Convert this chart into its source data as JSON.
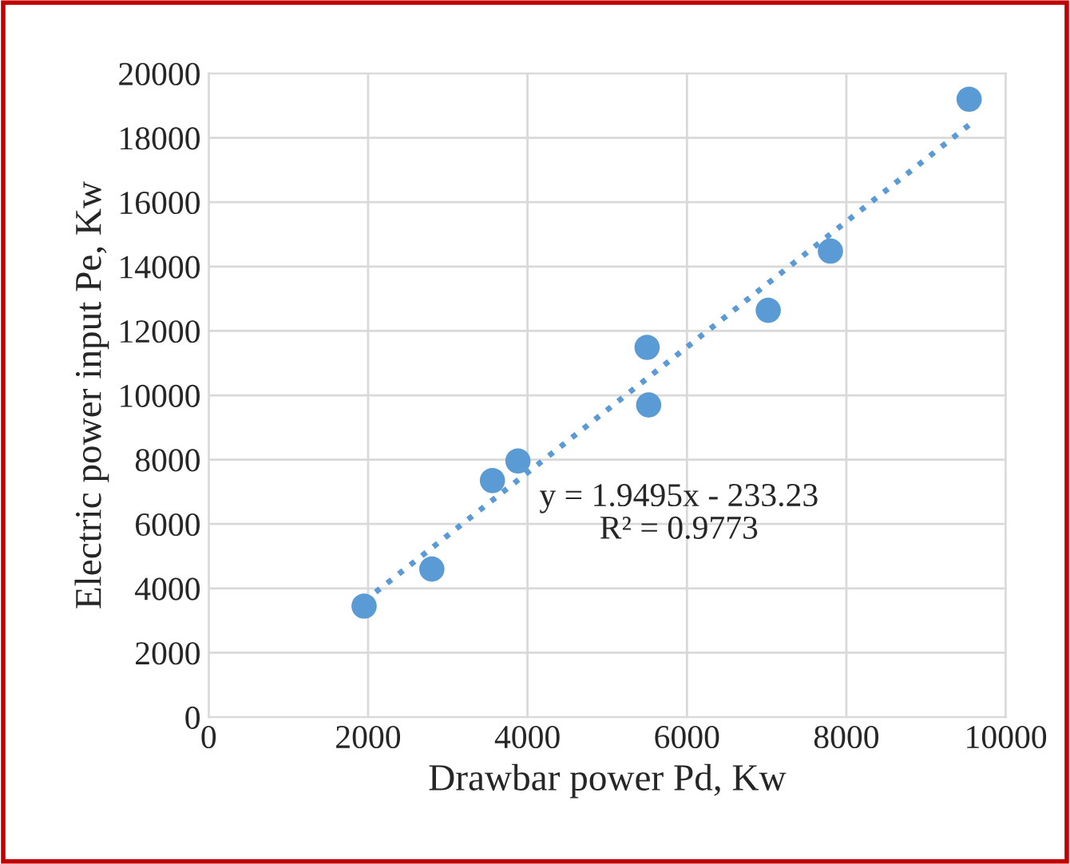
{
  "chart_data": {
    "type": "scatter",
    "xlabel": "Drawbar power Pd, Kw",
    "ylabel": "Electric power input Pe, Kw",
    "xlim": [
      0,
      10000
    ],
    "xticks": [
      0,
      2000,
      4000,
      6000,
      8000,
      10000
    ],
    "ylim": [
      0,
      20000
    ],
    "yticks": [
      0,
      2000,
      4000,
      6000,
      8000,
      10000,
      12000,
      14000,
      16000,
      18000,
      20000
    ],
    "grid": true,
    "legend": false,
    "series": [
      {
        "color": "#5b9bd5",
        "marker": "circle",
        "x": [
          1950,
          2800,
          3560,
          3880,
          5500,
          5520,
          7020,
          7800,
          9540
        ],
        "values": [
          3450,
          4600,
          7350,
          7960,
          11490,
          9700,
          12640,
          14480,
          19200
        ]
      },
      {
        "type": "line",
        "color": "#5b9bd5",
        "marker": "none",
        "line_style": "dotted",
        "x": [
          1950,
          9540
        ],
        "values": [
          3600,
          18400
        ]
      }
    ],
    "annotations": [
      "y = 1.9495x - 233.23\nR² = 0.9773"
    ]
  }
}
